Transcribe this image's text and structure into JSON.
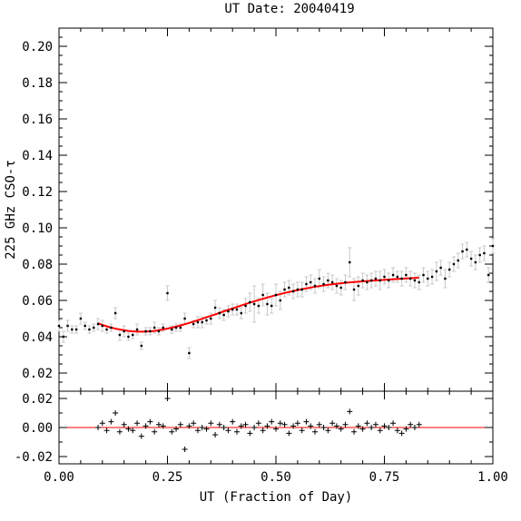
{
  "chart_data": [
    {
      "type": "scatter",
      "title": "UT Date: 20040419",
      "xlabel": "",
      "ylabel": "225 GHz CSO-τ",
      "xlim": [
        0.0,
        1.0
      ],
      "ylim": [
        0.01,
        0.21
      ],
      "yticks": [
        0.02,
        0.04,
        0.06,
        0.08,
        0.1,
        0.12,
        0.14,
        0.16,
        0.18,
        0.2
      ],
      "ytick_labels": [
        "0.02",
        "0.04",
        "0.06",
        "0.08",
        "0.10",
        "0.12",
        "0.14",
        "0.16",
        "0.18",
        "0.20"
      ],
      "colors": {
        "fit": "#ff0000",
        "points": "#000000",
        "errorbars": "#c8c8c8"
      },
      "series": [
        {
          "style": "black points with grey error bars",
          "x": [
            0.0,
            0.01,
            0.02,
            0.03,
            0.04,
            0.05,
            0.06,
            0.07,
            0.08,
            0.09,
            0.1,
            0.11,
            0.12,
            0.13,
            0.14,
            0.15,
            0.16,
            0.17,
            0.18,
            0.19,
            0.2,
            0.21,
            0.22,
            0.23,
            0.24,
            0.25,
            0.26,
            0.27,
            0.28,
            0.29,
            0.3,
            0.31,
            0.32,
            0.33,
            0.34,
            0.35,
            0.36,
            0.37,
            0.38,
            0.39,
            0.4,
            0.41,
            0.42,
            0.43,
            0.44,
            0.45,
            0.46,
            0.47,
            0.48,
            0.49,
            0.5,
            0.51,
            0.52,
            0.53,
            0.54,
            0.55,
            0.56,
            0.57,
            0.58,
            0.59,
            0.6,
            0.61,
            0.62,
            0.63,
            0.64,
            0.65,
            0.66,
            0.67,
            0.68,
            0.69,
            0.7,
            0.71,
            0.72,
            0.73,
            0.74,
            0.75,
            0.76,
            0.77,
            0.78,
            0.79,
            0.8,
            0.81,
            0.82,
            0.83,
            0.84,
            0.85,
            0.86,
            0.87,
            0.88,
            0.89,
            0.9,
            0.91,
            0.92,
            0.93,
            0.94,
            0.95,
            0.96,
            0.97,
            0.98,
            0.99,
            1.0
          ],
          "y": [
            0.046,
            0.04,
            0.046,
            0.044,
            0.044,
            0.05,
            0.046,
            0.044,
            0.045,
            0.047,
            0.046,
            0.044,
            0.045,
            0.053,
            0.041,
            0.043,
            0.04,
            0.041,
            0.044,
            0.035,
            0.043,
            0.043,
            0.045,
            0.043,
            0.045,
            0.064,
            0.044,
            0.045,
            0.045,
            0.05,
            0.031,
            0.047,
            0.048,
            0.048,
            0.049,
            0.05,
            0.056,
            0.053,
            0.052,
            0.054,
            0.055,
            0.055,
            0.053,
            0.057,
            0.059,
            0.058,
            0.057,
            0.063,
            0.058,
            0.057,
            0.063,
            0.06,
            0.066,
            0.067,
            0.065,
            0.066,
            0.066,
            0.069,
            0.07,
            0.068,
            0.072,
            0.069,
            0.071,
            0.07,
            0.068,
            0.067,
            0.07,
            0.081,
            0.066,
            0.068,
            0.071,
            0.07,
            0.071,
            0.072,
            0.071,
            0.073,
            0.071,
            0.074,
            0.073,
            0.072,
            0.074,
            0.072,
            0.071,
            0.07,
            0.074,
            0.072,
            0.073,
            0.076,
            0.078,
            0.072,
            0.077,
            0.08,
            0.082,
            0.087,
            0.088,
            0.083,
            0.081,
            0.085,
            0.086,
            0.074,
            0.09
          ],
          "yerr": [
            0.003,
            0.003,
            0.003,
            0.002,
            0.002,
            0.003,
            0.002,
            0.002,
            0.002,
            0.003,
            0.003,
            0.002,
            0.002,
            0.003,
            0.003,
            0.003,
            0.002,
            0.002,
            0.003,
            0.002,
            0.002,
            0.002,
            0.003,
            0.002,
            0.002,
            0.004,
            0.002,
            0.002,
            0.002,
            0.003,
            0.003,
            0.002,
            0.003,
            0.003,
            0.002,
            0.003,
            0.004,
            0.003,
            0.003,
            0.003,
            0.003,
            0.003,
            0.003,
            0.004,
            0.005,
            0.01,
            0.004,
            0.006,
            0.006,
            0.004,
            0.006,
            0.005,
            0.004,
            0.004,
            0.004,
            0.004,
            0.004,
            0.004,
            0.004,
            0.004,
            0.005,
            0.004,
            0.004,
            0.004,
            0.004,
            0.004,
            0.004,
            0.008,
            0.006,
            0.005,
            0.004,
            0.004,
            0.004,
            0.004,
            0.005,
            0.004,
            0.004,
            0.004,
            0.003,
            0.004,
            0.004,
            0.004,
            0.004,
            0.004,
            0.004,
            0.004,
            0.004,
            0.005,
            0.004,
            0.005,
            0.004,
            0.004,
            0.004,
            0.004,
            0.004,
            0.004,
            0.004,
            0.004,
            0.004,
            0.004,
            0.004
          ]
        },
        {
          "style": "red smooth polynomial fit",
          "x": [
            0.09,
            0.1,
            0.12,
            0.14,
            0.16,
            0.18,
            0.2,
            0.22,
            0.24,
            0.26,
            0.28,
            0.3,
            0.32,
            0.34,
            0.36,
            0.38,
            0.4,
            0.42,
            0.44,
            0.46,
            0.48,
            0.5,
            0.52,
            0.54,
            0.56,
            0.58,
            0.6,
            0.62,
            0.64,
            0.66,
            0.68,
            0.7,
            0.72,
            0.74,
            0.76,
            0.78,
            0.8,
            0.82,
            0.83
          ],
          "y": [
            0.0475,
            0.0465,
            0.045,
            0.044,
            0.0432,
            0.0428,
            0.0428,
            0.0432,
            0.044,
            0.045,
            0.0462,
            0.0476,
            0.0491,
            0.0507,
            0.0523,
            0.054,
            0.0556,
            0.0572,
            0.0588,
            0.0602,
            0.0616,
            0.0629,
            0.0641,
            0.0652,
            0.0662,
            0.0671,
            0.0679,
            0.0686,
            0.0692,
            0.0697,
            0.0701,
            0.0705,
            0.0709,
            0.0712,
            0.0715,
            0.0718,
            0.0721,
            0.0724,
            0.0726
          ]
        }
      ]
    },
    {
      "type": "scatter",
      "title": "",
      "xlabel": "UT (Fraction of Day)",
      "ylabel": "",
      "xlim": [
        0.0,
        1.0
      ],
      "ylim": [
        -0.025,
        0.025
      ],
      "yticks": [
        0.02,
        0.0,
        -0.02
      ],
      "ytick_labels": [
        "0.02",
        "0.00",
        "-0.02"
      ],
      "xticks": [
        0.0,
        0.25,
        0.5,
        0.75,
        1.0
      ],
      "xtick_labels": [
        "0.00",
        "0.25",
        "0.50",
        "0.75",
        "1.00"
      ],
      "colors": {
        "zero_line": "#ff0000",
        "points": "#000000"
      },
      "reference_line": 0.0,
      "series": [
        {
          "style": "residual plus markers",
          "x": [
            0.09,
            0.1,
            0.11,
            0.12,
            0.13,
            0.14,
            0.15,
            0.16,
            0.17,
            0.18,
            0.19,
            0.2,
            0.21,
            0.22,
            0.23,
            0.24,
            0.25,
            0.26,
            0.27,
            0.28,
            0.29,
            0.3,
            0.31,
            0.32,
            0.33,
            0.34,
            0.35,
            0.36,
            0.37,
            0.38,
            0.39,
            0.4,
            0.41,
            0.42,
            0.43,
            0.44,
            0.45,
            0.46,
            0.47,
            0.48,
            0.49,
            0.5,
            0.51,
            0.52,
            0.53,
            0.54,
            0.55,
            0.56,
            0.57,
            0.58,
            0.59,
            0.6,
            0.61,
            0.62,
            0.63,
            0.64,
            0.65,
            0.66,
            0.67,
            0.68,
            0.69,
            0.7,
            0.71,
            0.72,
            0.73,
            0.74,
            0.75,
            0.76,
            0.77,
            0.78,
            0.79,
            0.8,
            0.81,
            0.82,
            0.83
          ],
          "y": [
            0.0,
            0.003,
            -0.002,
            0.004,
            0.01,
            -0.003,
            0.002,
            -0.001,
            -0.002,
            0.003,
            -0.006,
            0.001,
            0.004,
            -0.003,
            0.002,
            0.001,
            0.02,
            -0.003,
            -0.001,
            0.002,
            -0.015,
            0.001,
            0.003,
            -0.002,
            0.0,
            -0.001,
            0.003,
            -0.005,
            0.002,
            0.0,
            -0.002,
            0.004,
            -0.003,
            0.001,
            0.002,
            -0.004,
            0.0,
            0.003,
            -0.002,
            0.001,
            0.004,
            -0.001,
            0.003,
            0.002,
            -0.004,
            0.001,
            0.003,
            -0.002,
            0.004,
            0.001,
            -0.003,
            0.002,
            0.0,
            -0.002,
            0.003,
            0.001,
            -0.001,
            0.002,
            0.011,
            -0.003,
            0.001,
            -0.001,
            0.003,
            0.0,
            0.002,
            -0.002,
            0.001,
            0.0,
            0.003,
            -0.002,
            -0.004,
            -0.001,
            0.002,
            0.0,
            0.002
          ]
        }
      ]
    }
  ]
}
